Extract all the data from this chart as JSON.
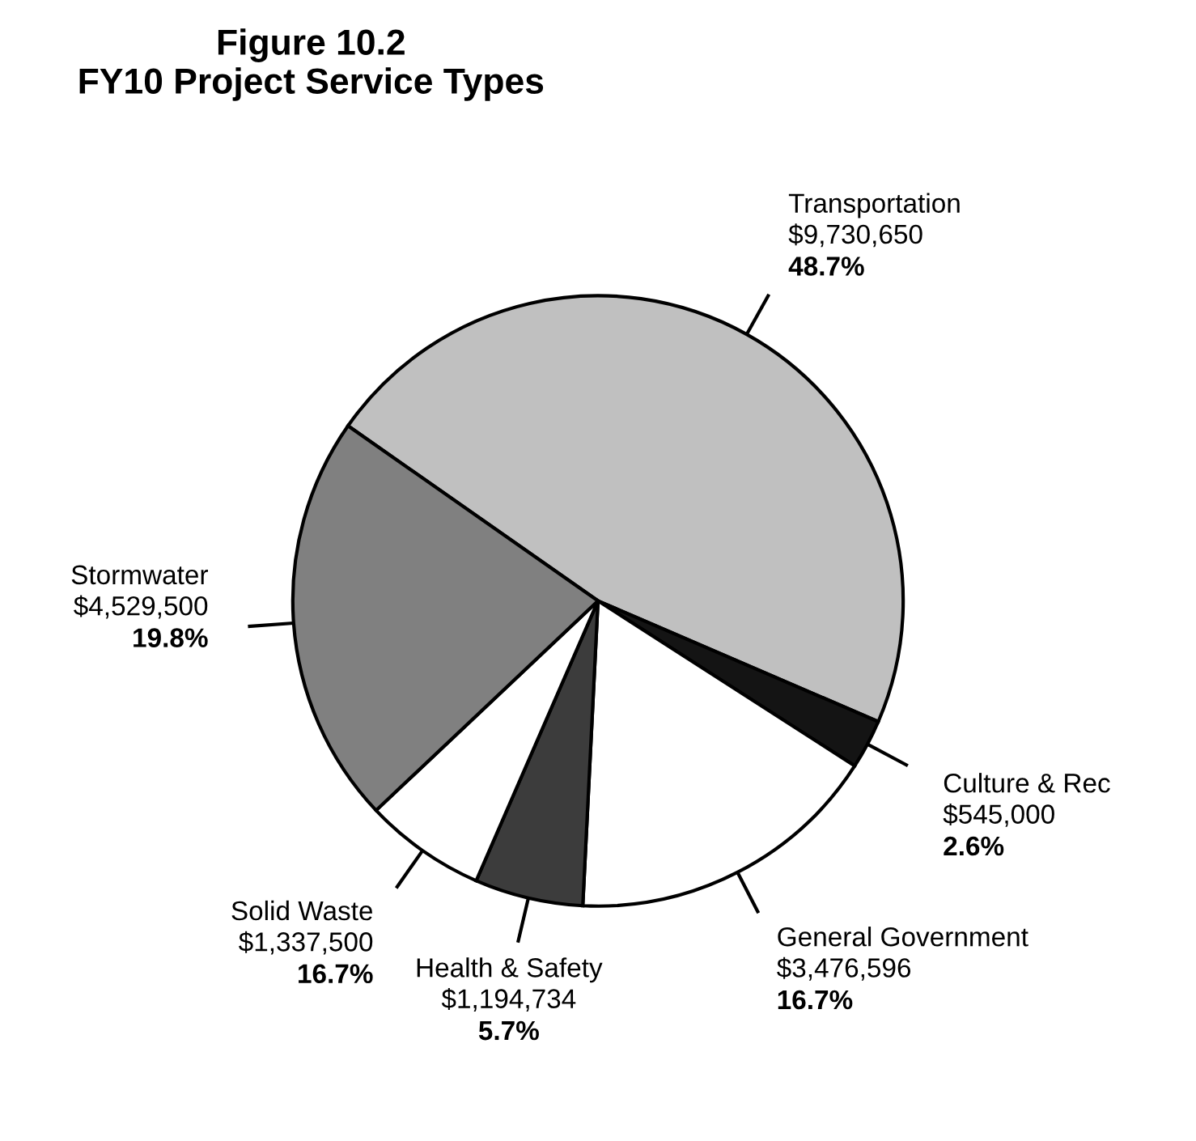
{
  "chart_data": {
    "type": "pie",
    "title": "Figure 10.2\nFY10 Project Service Types",
    "categories": [
      "Transportation",
      "Culture & Rec",
      "General Government",
      "Health & Safety",
      "Solid Waste",
      "Stormwater"
    ],
    "values": [
      9730650,
      545000,
      3476596,
      1194734,
      1337500,
      4529500
    ],
    "value_labels": [
      "$9,730,650",
      "$545,000",
      "$3,476,596",
      "$1,194,734",
      "$1,337,500",
      "$4,529,500"
    ],
    "colors": [
      "#c0c0c0",
      "#141414",
      "#ffffff",
      "#3c3c3c",
      "#ffffff",
      "#808080"
    ],
    "annotations": [
      {
        "text": "48.7%",
        "x": "Transportation"
      },
      {
        "text": "2.6%",
        "x": "Culture & Rec"
      },
      {
        "text": "16.7%",
        "x": "General Government"
      },
      {
        "text": "5.7%",
        "x": "Health & Safety"
      },
      {
        "text": "16.7%",
        "x": "Solid Waste"
      },
      {
        "text": "19.8%",
        "x": "Stormwater"
      }
    ],
    "legend": false
  }
}
